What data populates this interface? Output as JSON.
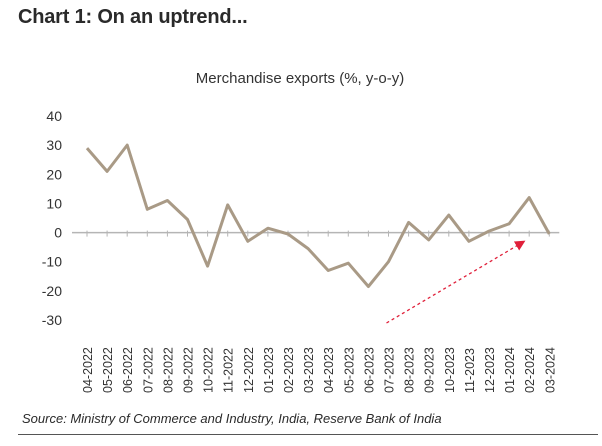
{
  "heading": "Chart 1: On an uptrend...",
  "source": "Source: Ministry of Commerce and Industry, India, Reserve Bank of India",
  "colors": {
    "line": "#a99a86",
    "arrow": "#e0203a",
    "axis": "#b5b5b5",
    "text": "#333333"
  },
  "chart_data": {
    "type": "line",
    "title": "Merchandise exports (%, y-o-y)",
    "xlabel": "",
    "ylabel": "",
    "ylim": [
      -30,
      40
    ],
    "yticks": [
      40,
      30,
      20,
      10,
      0,
      -10,
      -20,
      -30
    ],
    "grid": false,
    "categories": [
      "04-2022",
      "05-2022",
      "06-2022",
      "07-2022",
      "08-2022",
      "09-2022",
      "10-2022",
      "11-2022",
      "12-2022",
      "01-2023",
      "02-2023",
      "03-2023",
      "04-2023",
      "05-2023",
      "06-2023",
      "07-2023",
      "08-2023",
      "09-2023",
      "10-2023",
      "11-2023",
      "12-2023",
      "01-2024",
      "02-2024",
      "03-2024"
    ],
    "series": [
      {
        "values": [
          29,
          21,
          30,
          8,
          11,
          4.5,
          -11.5,
          9.5,
          -3,
          1.5,
          -0.5,
          -5.5,
          -13,
          -10.5,
          -18.5,
          -10,
          3.5,
          -2.5,
          6,
          -3,
          0.5,
          3,
          12,
          -0.5
        ]
      }
    ],
    "annotations": [
      {
        "type": "arrow",
        "from": "07-2023",
        "to": "02-2024",
        "style": "dashed"
      }
    ]
  }
}
